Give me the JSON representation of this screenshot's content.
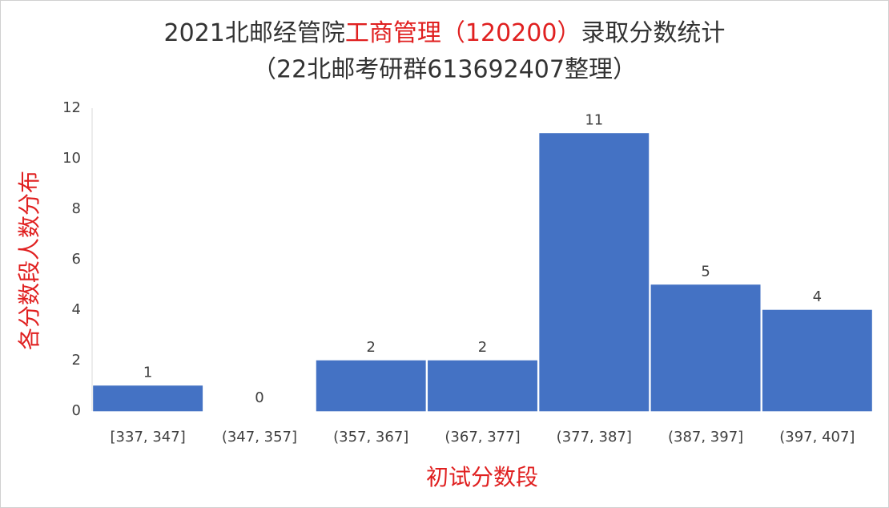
{
  "chart_data": {
    "type": "bar",
    "title": [
      {
        "text": "2021北邮经管院",
        "color": "#333333"
      },
      {
        "text": "工商管理（120200）",
        "color": "#e02020"
      },
      {
        "text": "录取分数统计",
        "color": "#333333"
      }
    ],
    "subtitle": "（22北邮考研群613692407整理）",
    "x_label": "初试分数段",
    "y_label": "各分数段人数分布",
    "axis_label_color": "#e02020",
    "categories": [
      "[337, 347]",
      "(347, 357]",
      "(357, 367]",
      "(367, 377]",
      "(377, 387]",
      "(387, 397]",
      "(397, 407]"
    ],
    "values": [
      1,
      0,
      2,
      2,
      11,
      5,
      4
    ],
    "color": "#4472c4",
    "ylim": [
      0,
      12
    ],
    "yticks": [
      0,
      2,
      4,
      6,
      8,
      10,
      12
    ],
    "grid": false
  }
}
